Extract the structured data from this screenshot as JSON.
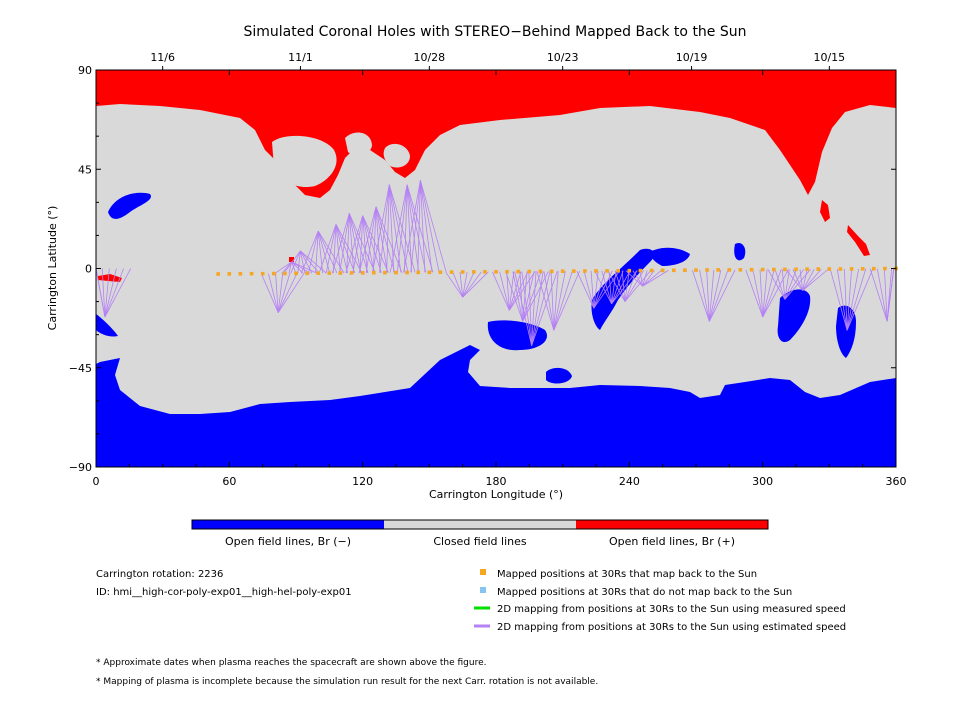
{
  "chart_data": {
    "type": "map",
    "title": "Simulated Coronal Holes with STEREO−Behind Mapped Back to the Sun",
    "xlabel": "Carrington Longitude (°)",
    "ylabel": "Carrington Latitude (°)",
    "xlim": [
      0,
      360
    ],
    "ylim": [
      -90,
      90
    ],
    "x_ticks": [
      0,
      60,
      120,
      180,
      240,
      300,
      360
    ],
    "y_ticks": [
      90,
      45,
      0,
      -45,
      -90
    ],
    "y_tick_labels": [
      "90",
      "45",
      "0",
      "−45",
      "−90"
    ],
    "top_axis": {
      "dates": [
        {
          "label": "11/6",
          "lon": 30
        },
        {
          "label": "11/1",
          "lon": 92
        },
        {
          "label": "10/28",
          "lon": 150
        },
        {
          "label": "10/23",
          "lon": 210
        },
        {
          "label": "10/19",
          "lon": 268
        },
        {
          "label": "10/15",
          "lon": 330
        }
      ]
    },
    "colors": {
      "open_negative": "#0000ff",
      "closed": "#d9d9d9",
      "open_positive": "#ff0000",
      "mapped": "#f5a623",
      "not_mapped": "#87c5f0",
      "measured_line": "#00e000",
      "estimated_line": "#b581f5"
    },
    "colorbar": {
      "labels": [
        "Open field lines, Br (−)",
        "Closed field lines",
        "Open field lines, Br (+)"
      ]
    },
    "mapped_points": {
      "lon_start": 55,
      "lat_start": -2.5,
      "lon_end": 360,
      "lat_end": 0,
      "count": 62
    },
    "estimated_mapping_targets": [
      {
        "lat_from": 0,
        "lon": 82,
        "lat": -20
      },
      {
        "lat_from": 0,
        "lon": 88,
        "lat": 3
      },
      {
        "lat_from": 0,
        "lon": 92,
        "lat": 8
      },
      {
        "lat_from": 0,
        "lon": 100,
        "lat": 17
      },
      {
        "lat_from": 0,
        "lon": 108,
        "lat": 20
      },
      {
        "lat_from": 0,
        "lon": 114,
        "lat": 25
      },
      {
        "lat_from": 0,
        "lon": 120,
        "lat": 24
      },
      {
        "lat_from": 0,
        "lon": 126,
        "lat": 28
      },
      {
        "lat_from": 0,
        "lon": 132,
        "lat": 38
      },
      {
        "lat_from": 0,
        "lon": 140,
        "lat": 38
      },
      {
        "lat_from": 0,
        "lon": 146,
        "lat": 40
      },
      {
        "lat_from": 0,
        "lon": 165,
        "lat": -13
      },
      {
        "lat_from": 0,
        "lon": 186,
        "lat": -19
      },
      {
        "lat_from": 0,
        "lon": 192,
        "lat": -24
      },
      {
        "lat_from": 0,
        "lon": 196,
        "lat": -35
      },
      {
        "lat_from": 0,
        "lon": 206,
        "lat": -28
      },
      {
        "lat_from": 0,
        "lon": 224,
        "lat": -18
      },
      {
        "lat_from": 0,
        "lon": 232,
        "lat": -16
      },
      {
        "lat_from": 0,
        "lon": 238,
        "lat": -15
      },
      {
        "lat_from": 0,
        "lon": 246,
        "lat": -8
      },
      {
        "lat_from": 0,
        "lon": 276,
        "lat": -24
      },
      {
        "lat_from": 0,
        "lon": 300,
        "lat": -22
      },
      {
        "lat_from": 0,
        "lon": 310,
        "lat": -14
      },
      {
        "lat_from": 0,
        "lon": 318,
        "lat": -10
      },
      {
        "lat_from": 0,
        "lon": 338,
        "lat": -28
      },
      {
        "lat_from": 0,
        "lon": 356,
        "lat": -24
      },
      {
        "lat_from": 0,
        "lon": 4,
        "lat": -22
      }
    ]
  },
  "info": {
    "carrington_rotation": "Carrington rotation: 2236",
    "id": "ID: hmi__high-cor-poly-exp01__high-hel-poly-exp01"
  },
  "legend": {
    "mapped": "Mapped positions at 30Rs that map back to the Sun",
    "not_mapped": "Mapped positions at 30Rs that do not map back to the Sun",
    "measured": "2D mapping from positions at 30Rs to the Sun using measured speed",
    "estimated": "2D mapping from positions at 30Rs to the Sun using estimated speed"
  },
  "notes": [
    "* Approximate dates when plasma reaches the spacecraft are shown above the figure.",
    "* Mapping of plasma is incomplete because the simulation run result for the next Carr. rotation is not available."
  ]
}
